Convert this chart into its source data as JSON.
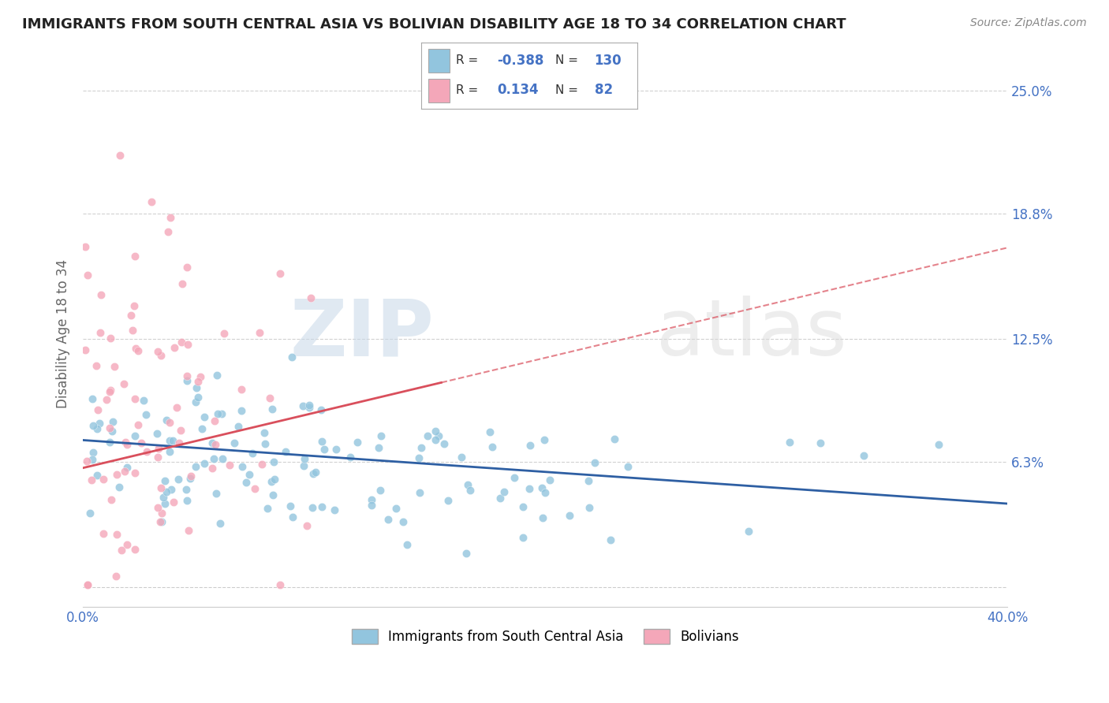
{
  "title": "IMMIGRANTS FROM SOUTH CENTRAL ASIA VS BOLIVIAN DISABILITY AGE 18 TO 34 CORRELATION CHART",
  "source": "Source: ZipAtlas.com",
  "ylabel": "Disability Age 18 to 34",
  "xlim": [
    0.0,
    0.4
  ],
  "ylim": [
    -0.01,
    0.265
  ],
  "yticks": [
    0.0,
    0.063,
    0.125,
    0.188,
    0.25
  ],
  "ytick_labels": [
    "",
    "6.3%",
    "12.5%",
    "18.8%",
    "25.0%"
  ],
  "xticks": [
    0.0,
    0.1,
    0.2,
    0.3,
    0.4
  ],
  "xtick_labels": [
    "0.0%",
    "",
    "",
    "",
    "40.0%"
  ],
  "blue_R": -0.388,
  "blue_N": 130,
  "pink_R": 0.134,
  "pink_N": 82,
  "blue_color": "#92C5DE",
  "pink_color": "#F4A7B9",
  "blue_trend_color": "#2E5FA3",
  "pink_trend_color": "#D94F5C",
  "legend_label_blue": "Immigrants from South Central Asia",
  "legend_label_pink": "Bolivians",
  "watermark_zip": "ZIP",
  "watermark_atlas": "atlas",
  "background_color": "#FFFFFF",
  "grid_color": "#CCCCCC",
  "title_color": "#222222",
  "source_color": "#888888",
  "axis_label_color": "#4472C4",
  "ylabel_color": "#666666"
}
